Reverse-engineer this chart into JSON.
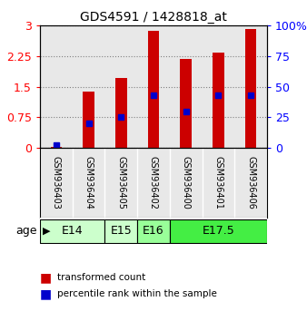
{
  "title": "GDS4591 / 1428818_at",
  "samples": [
    "GSM936403",
    "GSM936404",
    "GSM936405",
    "GSM936402",
    "GSM936400",
    "GSM936401",
    "GSM936406"
  ],
  "transformed_counts": [
    0.02,
    1.38,
    1.72,
    2.88,
    2.18,
    2.35,
    2.92
  ],
  "percentile_ranks": [
    2.0,
    20.0,
    25.0,
    43.0,
    30.0,
    43.0,
    43.0
  ],
  "age_groups": [
    {
      "label": "E14",
      "start": 0,
      "end": 2,
      "color": "#ccffcc"
    },
    {
      "label": "E15",
      "start": 2,
      "end": 3,
      "color": "#ccffcc"
    },
    {
      "label": "E16",
      "start": 3,
      "end": 4,
      "color": "#99ff99"
    },
    {
      "label": "E17.5",
      "start": 4,
      "end": 7,
      "color": "#44ee44"
    }
  ],
  "ylim_left": [
    0,
    3
  ],
  "ylim_right": [
    0,
    100
  ],
  "yticks_left": [
    0,
    0.75,
    1.5,
    2.25,
    3
  ],
  "yticks_right": [
    0,
    25,
    50,
    75,
    100
  ],
  "bar_color": "#cc0000",
  "dot_color": "#0000cc",
  "bar_width": 0.35,
  "background_color": "#ffffff",
  "axis_bg_color": "#e8e8e8",
  "legend_red_label": "transformed count",
  "legend_blue_label": "percentile rank within the sample"
}
